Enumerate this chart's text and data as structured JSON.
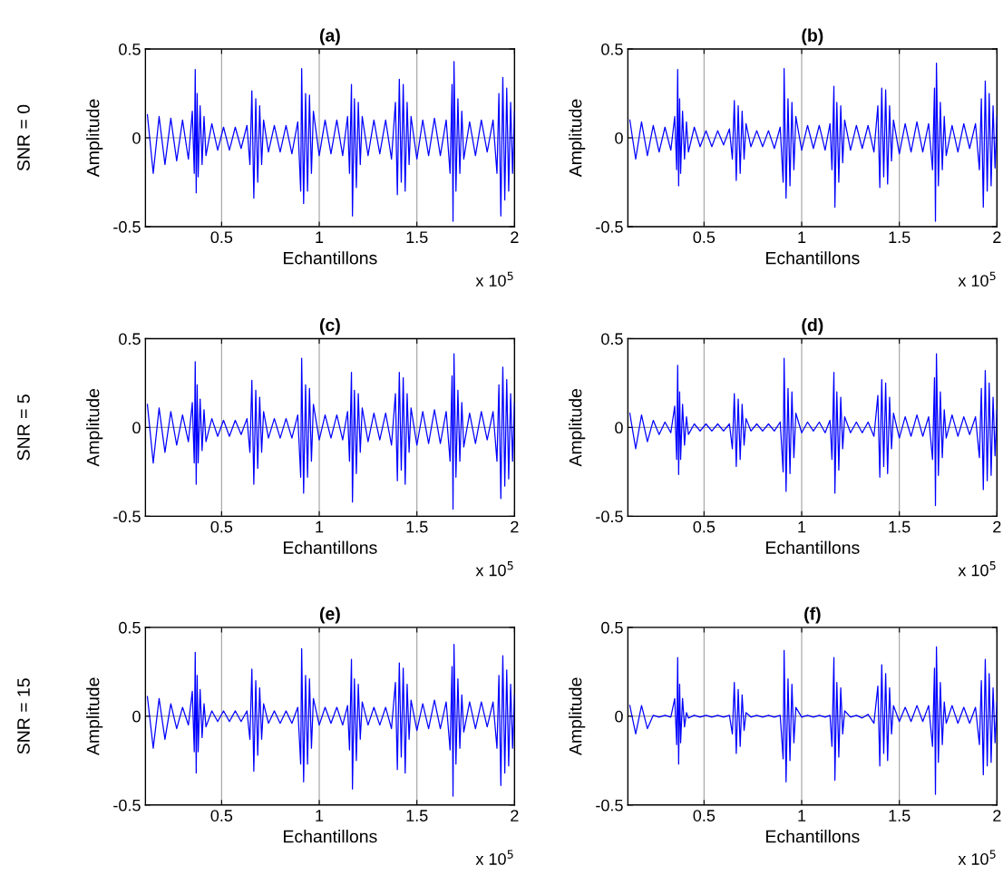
{
  "chart_data": [
    {
      "type": "line",
      "title": "(a)",
      "xlabel": "Echantillons",
      "ylabel": "Amplitude",
      "annotations": [
        "x 10$^{5}$",
        "SNR = 0"
      ],
      "xlim": [
        0.11,
        2
      ],
      "xticks": [
        0.5,
        1,
        1.5,
        2
      ],
      "ylim": [
        -0.5,
        0.5
      ],
      "yticks": [
        -0.5,
        0,
        0.5
      ],
      "grid": true,
      "marker": "none",
      "line_style": "solid",
      "x": [
        0.12,
        0.15,
        0.18,
        0.21,
        0.24,
        0.27,
        0.3,
        0.33,
        0.35,
        0.36,
        0.365,
        0.37,
        0.375,
        0.38,
        0.39,
        0.4,
        0.41,
        0.42,
        0.45,
        0.48,
        0.51,
        0.54,
        0.57,
        0.6,
        0.63,
        0.645,
        0.655,
        0.665,
        0.675,
        0.685,
        0.695,
        0.705,
        0.715,
        0.74,
        0.77,
        0.8,
        0.83,
        0.86,
        0.89,
        0.905,
        0.91,
        0.92,
        0.93,
        0.94,
        0.95,
        0.96,
        0.97,
        1.0,
        1.03,
        1.06,
        1.09,
        1.12,
        1.145,
        1.155,
        1.165,
        1.17,
        1.18,
        1.19,
        1.2,
        1.21,
        1.22,
        1.25,
        1.28,
        1.31,
        1.34,
        1.37,
        1.39,
        1.4,
        1.41,
        1.42,
        1.43,
        1.44,
        1.45,
        1.46,
        1.47,
        1.5,
        1.53,
        1.56,
        1.59,
        1.62,
        1.65,
        1.67,
        1.68,
        1.685,
        1.69,
        1.7,
        1.71,
        1.72,
        1.73,
        1.74,
        1.77,
        1.8,
        1.83,
        1.86,
        1.89,
        1.91,
        1.92,
        1.93,
        1.94,
        1.95,
        1.96,
        1.97,
        1.98,
        1.99,
        2.0
      ],
      "series": [
        {
          "color": "#0000ff",
          "values": [
            0.13,
            -0.2,
            0.12,
            -0.15,
            0.11,
            -0.13,
            0.1,
            -0.12,
            0.15,
            -0.2,
            0.385,
            -0.31,
            0.25,
            -0.22,
            0.18,
            -0.15,
            0.12,
            -0.1,
            0.08,
            -0.07,
            0.06,
            -0.07,
            0.06,
            -0.06,
            0.07,
            -0.15,
            0.265,
            -0.34,
            0.22,
            -0.25,
            0.18,
            -0.15,
            0.1,
            -0.08,
            0.07,
            -0.08,
            0.07,
            -0.09,
            0.09,
            -0.3,
            0.39,
            -0.37,
            0.25,
            -0.3,
            0.24,
            -0.2,
            0.15,
            -0.1,
            0.1,
            -0.09,
            0.1,
            -0.1,
            0.12,
            -0.2,
            0.3,
            -0.44,
            0.22,
            -0.28,
            0.2,
            -0.15,
            0.12,
            -0.1,
            0.1,
            -0.09,
            0.1,
            -0.12,
            0.2,
            -0.32,
            0.33,
            -0.25,
            0.3,
            -0.3,
            0.2,
            -0.15,
            0.12,
            -0.12,
            0.1,
            -0.1,
            0.11,
            -0.1,
            0.1,
            -0.2,
            0.3,
            -0.47,
            0.43,
            -0.3,
            0.22,
            -0.2,
            0.15,
            -0.12,
            0.09,
            -0.1,
            0.1,
            -0.08,
            0.1,
            -0.2,
            0.25,
            -0.44,
            0.34,
            -0.35,
            0.28,
            -0.3,
            0.2,
            -0.2,
            0.15
          ]
        }
      ]
    },
    {
      "type": "line",
      "title": "(b)",
      "xlabel": "Echantillons",
      "ylabel": "Amplitude",
      "annotations": [
        "x 10$^{5}$"
      ],
      "xlim": [
        0.11,
        2
      ],
      "xticks": [
        0.5,
        1,
        1.5,
        2
      ],
      "ylim": [
        -0.5,
        0.5
      ],
      "yticks": [
        -0.5,
        0,
        0.5
      ],
      "grid": true,
      "marker": "none",
      "line_style": "solid",
      "x": [
        0.12,
        0.15,
        0.18,
        0.21,
        0.24,
        0.27,
        0.3,
        0.33,
        0.35,
        0.36,
        0.365,
        0.37,
        0.375,
        0.38,
        0.39,
        0.4,
        0.41,
        0.42,
        0.45,
        0.48,
        0.51,
        0.54,
        0.57,
        0.6,
        0.63,
        0.645,
        0.655,
        0.665,
        0.675,
        0.685,
        0.695,
        0.705,
        0.715,
        0.74,
        0.77,
        0.8,
        0.83,
        0.86,
        0.89,
        0.905,
        0.91,
        0.92,
        0.93,
        0.94,
        0.95,
        0.96,
        0.97,
        1.0,
        1.03,
        1.06,
        1.09,
        1.12,
        1.145,
        1.155,
        1.165,
        1.17,
        1.18,
        1.19,
        1.2,
        1.21,
        1.22,
        1.25,
        1.28,
        1.31,
        1.34,
        1.37,
        1.39,
        1.4,
        1.41,
        1.42,
        1.43,
        1.44,
        1.45,
        1.46,
        1.47,
        1.5,
        1.53,
        1.56,
        1.59,
        1.62,
        1.65,
        1.67,
        1.68,
        1.685,
        1.69,
        1.7,
        1.71,
        1.72,
        1.73,
        1.74,
        1.77,
        1.8,
        1.83,
        1.86,
        1.89,
        1.91,
        1.92,
        1.93,
        1.94,
        1.95,
        1.96,
        1.97,
        1.98,
        1.99,
        2.0
      ],
      "series": [
        {
          "color": "#0000ff",
          "values": [
            0.1,
            -0.12,
            0.09,
            -0.1,
            0.07,
            -0.08,
            0.06,
            -0.07,
            0.12,
            -0.18,
            0.385,
            -0.27,
            0.22,
            -0.2,
            0.15,
            -0.12,
            0.09,
            -0.08,
            0.06,
            -0.05,
            0.04,
            -0.05,
            0.04,
            -0.04,
            0.05,
            -0.12,
            0.21,
            -0.24,
            0.18,
            -0.2,
            0.15,
            -0.12,
            0.08,
            -0.05,
            0.04,
            -0.05,
            0.04,
            -0.06,
            0.06,
            -0.25,
            0.39,
            -0.34,
            0.22,
            -0.27,
            0.2,
            -0.18,
            0.12,
            -0.07,
            0.07,
            -0.06,
            0.07,
            -0.07,
            0.08,
            -0.18,
            0.29,
            -0.39,
            0.2,
            -0.25,
            0.18,
            -0.14,
            0.1,
            -0.07,
            0.07,
            -0.06,
            0.07,
            -0.08,
            0.18,
            -0.28,
            0.28,
            -0.22,
            0.27,
            -0.26,
            0.18,
            -0.13,
            0.1,
            -0.09,
            0.08,
            -0.08,
            0.09,
            -0.08,
            0.08,
            -0.18,
            0.28,
            -0.47,
            0.42,
            -0.27,
            0.2,
            -0.18,
            0.12,
            -0.1,
            0.07,
            -0.08,
            0.08,
            -0.06,
            0.08,
            -0.18,
            0.22,
            -0.39,
            0.32,
            -0.3,
            0.25,
            -0.27,
            0.18,
            -0.17,
            0.12
          ]
        }
      ]
    },
    {
      "type": "line",
      "title": "(c)",
      "xlabel": "Echantillons",
      "ylabel": "Amplitude",
      "annotations": [
        "x 10$^{5}$",
        "SNR = 5"
      ],
      "xlim": [
        0.11,
        2
      ],
      "xticks": [
        0.5,
        1,
        1.5,
        2
      ],
      "ylim": [
        -0.5,
        0.5
      ],
      "yticks": [
        -0.5,
        0,
        0.5
      ],
      "grid": true,
      "marker": "none",
      "line_style": "solid",
      "x": [
        0.12,
        0.15,
        0.18,
        0.21,
        0.24,
        0.27,
        0.3,
        0.33,
        0.35,
        0.36,
        0.365,
        0.37,
        0.375,
        0.38,
        0.39,
        0.4,
        0.41,
        0.42,
        0.45,
        0.48,
        0.51,
        0.54,
        0.57,
        0.6,
        0.63,
        0.645,
        0.655,
        0.665,
        0.675,
        0.685,
        0.695,
        0.705,
        0.715,
        0.74,
        0.77,
        0.8,
        0.83,
        0.86,
        0.89,
        0.905,
        0.91,
        0.92,
        0.93,
        0.94,
        0.95,
        0.96,
        0.97,
        1.0,
        1.03,
        1.06,
        1.09,
        1.12,
        1.145,
        1.155,
        1.165,
        1.17,
        1.18,
        1.19,
        1.2,
        1.21,
        1.22,
        1.25,
        1.28,
        1.31,
        1.34,
        1.37,
        1.39,
        1.4,
        1.41,
        1.42,
        1.43,
        1.44,
        1.45,
        1.46,
        1.47,
        1.5,
        1.53,
        1.56,
        1.59,
        1.62,
        1.65,
        1.67,
        1.68,
        1.685,
        1.69,
        1.7,
        1.71,
        1.72,
        1.73,
        1.74,
        1.77,
        1.8,
        1.83,
        1.86,
        1.89,
        1.91,
        1.92,
        1.93,
        1.94,
        1.95,
        1.96,
        1.97,
        1.98,
        1.99,
        2.0
      ],
      "series": [
        {
          "color": "#0000ff",
          "values": [
            0.13,
            -0.2,
            0.11,
            -0.14,
            0.09,
            -0.1,
            0.07,
            -0.08,
            0.14,
            -0.2,
            0.37,
            -0.32,
            0.24,
            -0.2,
            0.16,
            -0.13,
            0.1,
            -0.08,
            0.05,
            -0.05,
            0.04,
            -0.05,
            0.04,
            -0.04,
            0.05,
            -0.14,
            0.265,
            -0.32,
            0.21,
            -0.23,
            0.17,
            -0.14,
            0.09,
            -0.06,
            0.05,
            -0.06,
            0.05,
            -0.06,
            0.07,
            -0.28,
            0.39,
            -0.37,
            0.24,
            -0.28,
            0.22,
            -0.19,
            0.13,
            -0.07,
            0.07,
            -0.06,
            0.07,
            -0.07,
            0.09,
            -0.19,
            0.31,
            -0.42,
            0.21,
            -0.26,
            0.19,
            -0.14,
            0.11,
            -0.08,
            0.08,
            -0.07,
            0.08,
            -0.1,
            0.19,
            -0.3,
            0.31,
            -0.24,
            0.28,
            -0.32,
            0.19,
            -0.14,
            0.11,
            -0.1,
            0.09,
            -0.09,
            0.1,
            -0.09,
            0.09,
            -0.19,
            0.29,
            -0.46,
            0.415,
            -0.28,
            0.21,
            -0.19,
            0.14,
            -0.11,
            0.08,
            -0.09,
            0.09,
            -0.07,
            0.09,
            -0.19,
            0.24,
            -0.4,
            0.34,
            -0.33,
            0.27,
            -0.29,
            0.19,
            -0.19,
            0.14
          ]
        }
      ]
    },
    {
      "type": "line",
      "title": "(d)",
      "xlabel": "Echantillons",
      "ylabel": "Amplitude",
      "annotations": [
        "x 10$^{5}$"
      ],
      "xlim": [
        0.11,
        2
      ],
      "xticks": [
        0.5,
        1,
        1.5,
        2
      ],
      "ylim": [
        -0.5,
        0.5
      ],
      "yticks": [
        -0.5,
        0,
        0.5
      ],
      "grid": true,
      "marker": "none",
      "line_style": "solid",
      "x": [
        0.12,
        0.15,
        0.18,
        0.21,
        0.24,
        0.27,
        0.3,
        0.33,
        0.35,
        0.36,
        0.365,
        0.37,
        0.375,
        0.38,
        0.39,
        0.4,
        0.41,
        0.42,
        0.45,
        0.48,
        0.51,
        0.54,
        0.57,
        0.6,
        0.63,
        0.645,
        0.655,
        0.665,
        0.675,
        0.685,
        0.695,
        0.705,
        0.715,
        0.74,
        0.77,
        0.8,
        0.83,
        0.86,
        0.89,
        0.905,
        0.91,
        0.92,
        0.93,
        0.94,
        0.95,
        0.96,
        0.97,
        1.0,
        1.03,
        1.06,
        1.09,
        1.12,
        1.145,
        1.155,
        1.165,
        1.17,
        1.18,
        1.19,
        1.2,
        1.21,
        1.22,
        1.25,
        1.28,
        1.31,
        1.34,
        1.37,
        1.39,
        1.4,
        1.41,
        1.42,
        1.43,
        1.44,
        1.45,
        1.46,
        1.47,
        1.5,
        1.53,
        1.56,
        1.59,
        1.62,
        1.65,
        1.67,
        1.68,
        1.685,
        1.69,
        1.7,
        1.71,
        1.72,
        1.73,
        1.74,
        1.77,
        1.8,
        1.83,
        1.86,
        1.89,
        1.91,
        1.92,
        1.93,
        1.94,
        1.95,
        1.96,
        1.97,
        1.98,
        1.99,
        2.0
      ],
      "series": [
        {
          "color": "#0000ff",
          "values": [
            0.08,
            -0.12,
            0.07,
            -0.08,
            0.04,
            -0.04,
            0.03,
            -0.03,
            0.12,
            -0.18,
            0.35,
            -0.265,
            0.2,
            -0.18,
            0.13,
            -0.1,
            0.06,
            -0.04,
            0.02,
            -0.02,
            0.02,
            -0.02,
            0.02,
            -0.02,
            0.02,
            -0.12,
            0.19,
            -0.22,
            0.16,
            -0.18,
            0.13,
            -0.1,
            0.05,
            -0.02,
            0.02,
            -0.02,
            0.02,
            -0.02,
            0.03,
            -0.25,
            0.39,
            -0.36,
            0.22,
            -0.26,
            0.2,
            -0.17,
            0.08,
            -0.03,
            0.03,
            -0.02,
            0.03,
            -0.03,
            0.04,
            -0.18,
            0.31,
            -0.37,
            0.2,
            -0.24,
            0.17,
            -0.12,
            0.06,
            -0.03,
            0.03,
            -0.03,
            0.03,
            -0.05,
            0.18,
            -0.28,
            0.27,
            -0.22,
            0.25,
            -0.26,
            0.17,
            -0.12,
            0.08,
            -0.06,
            0.06,
            -0.05,
            0.07,
            -0.05,
            0.06,
            -0.18,
            0.28,
            -0.44,
            0.415,
            -0.27,
            0.2,
            -0.17,
            0.1,
            -0.06,
            0.07,
            -0.05,
            0.06,
            -0.04,
            0.06,
            -0.17,
            0.22,
            -0.35,
            0.32,
            -0.3,
            0.25,
            -0.27,
            0.17,
            -0.16,
            0.1
          ]
        }
      ]
    },
    {
      "type": "line",
      "title": "(e)",
      "xlabel": "Echantillons",
      "ylabel": "Amplitude",
      "annotations": [
        "x 10$^{5}$",
        "SNR = 15"
      ],
      "xlim": [
        0.11,
        2
      ],
      "xticks": [
        0.5,
        1,
        1.5,
        2
      ],
      "ylim": [
        -0.5,
        0.5
      ],
      "yticks": [
        -0.5,
        0,
        0.5
      ],
      "grid": true,
      "marker": "none",
      "line_style": "solid",
      "x": [
        0.12,
        0.15,
        0.18,
        0.21,
        0.24,
        0.27,
        0.3,
        0.33,
        0.35,
        0.36,
        0.365,
        0.37,
        0.375,
        0.38,
        0.39,
        0.4,
        0.41,
        0.42,
        0.45,
        0.48,
        0.51,
        0.54,
        0.57,
        0.6,
        0.63,
        0.645,
        0.655,
        0.665,
        0.675,
        0.685,
        0.695,
        0.705,
        0.715,
        0.74,
        0.77,
        0.8,
        0.83,
        0.86,
        0.89,
        0.905,
        0.91,
        0.92,
        0.93,
        0.94,
        0.95,
        0.96,
        0.97,
        1.0,
        1.03,
        1.06,
        1.09,
        1.12,
        1.145,
        1.155,
        1.165,
        1.17,
        1.18,
        1.19,
        1.2,
        1.21,
        1.22,
        1.25,
        1.28,
        1.31,
        1.34,
        1.37,
        1.39,
        1.4,
        1.41,
        1.42,
        1.43,
        1.44,
        1.45,
        1.46,
        1.47,
        1.5,
        1.53,
        1.56,
        1.59,
        1.62,
        1.65,
        1.67,
        1.68,
        1.685,
        1.69,
        1.7,
        1.71,
        1.72,
        1.73,
        1.74,
        1.77,
        1.8,
        1.83,
        1.86,
        1.89,
        1.91,
        1.92,
        1.93,
        1.94,
        1.95,
        1.96,
        1.97,
        1.98,
        1.99,
        2.0
      ],
      "series": [
        {
          "color": "#0000ff",
          "values": [
            0.11,
            -0.18,
            0.1,
            -0.13,
            0.07,
            -0.07,
            0.05,
            -0.05,
            0.14,
            -0.2,
            0.36,
            -0.32,
            0.23,
            -0.2,
            0.15,
            -0.12,
            0.07,
            -0.06,
            0.03,
            -0.03,
            0.03,
            -0.03,
            0.03,
            -0.03,
            0.03,
            -0.13,
            0.265,
            -0.31,
            0.2,
            -0.22,
            0.16,
            -0.13,
            0.07,
            -0.04,
            0.03,
            -0.04,
            0.03,
            -0.04,
            0.05,
            -0.27,
            0.38,
            -0.37,
            0.23,
            -0.27,
            0.21,
            -0.18,
            0.1,
            -0.05,
            0.05,
            -0.04,
            0.05,
            -0.05,
            0.06,
            -0.19,
            0.32,
            -0.41,
            0.21,
            -0.25,
            0.18,
            -0.13,
            0.08,
            -0.05,
            0.05,
            -0.05,
            0.05,
            -0.07,
            0.19,
            -0.3,
            0.3,
            -0.23,
            0.27,
            -0.32,
            0.18,
            -0.13,
            0.09,
            -0.08,
            0.07,
            -0.07,
            0.09,
            -0.07,
            0.08,
            -0.19,
            0.28,
            -0.45,
            0.405,
            -0.27,
            0.21,
            -0.18,
            0.12,
            -0.09,
            0.08,
            -0.07,
            0.08,
            -0.06,
            0.08,
            -0.18,
            0.23,
            -0.39,
            0.34,
            -0.32,
            0.26,
            -0.28,
            0.18,
            -0.18,
            0.12
          ]
        }
      ]
    },
    {
      "type": "line",
      "title": "(f)",
      "xlabel": "Echantillons",
      "ylabel": "Amplitude",
      "annotations": [
        "x 10$^{5}$"
      ],
      "xlim": [
        0.11,
        2
      ],
      "xticks": [
        0.5,
        1,
        1.5,
        2
      ],
      "ylim": [
        -0.5,
        0.5
      ],
      "yticks": [
        -0.5,
        0,
        0.5
      ],
      "grid": true,
      "marker": "none",
      "line_style": "solid",
      "x": [
        0.12,
        0.15,
        0.18,
        0.21,
        0.24,
        0.27,
        0.3,
        0.33,
        0.35,
        0.36,
        0.365,
        0.37,
        0.375,
        0.38,
        0.39,
        0.4,
        0.41,
        0.42,
        0.45,
        0.48,
        0.51,
        0.54,
        0.57,
        0.6,
        0.63,
        0.645,
        0.655,
        0.665,
        0.675,
        0.685,
        0.695,
        0.705,
        0.715,
        0.74,
        0.77,
        0.8,
        0.83,
        0.86,
        0.89,
        0.905,
        0.91,
        0.92,
        0.93,
        0.94,
        0.95,
        0.96,
        0.97,
        1.0,
        1.03,
        1.06,
        1.09,
        1.12,
        1.145,
        1.155,
        1.165,
        1.17,
        1.18,
        1.19,
        1.2,
        1.21,
        1.22,
        1.25,
        1.28,
        1.31,
        1.34,
        1.37,
        1.39,
        1.4,
        1.41,
        1.42,
        1.43,
        1.44,
        1.45,
        1.46,
        1.47,
        1.5,
        1.53,
        1.56,
        1.59,
        1.62,
        1.65,
        1.67,
        1.68,
        1.685,
        1.69,
        1.7,
        1.71,
        1.72,
        1.73,
        1.74,
        1.77,
        1.8,
        1.83,
        1.86,
        1.89,
        1.91,
        1.92,
        1.93,
        1.94,
        1.95,
        1.96,
        1.97,
        1.98,
        1.99,
        2.0
      ],
      "series": [
        {
          "color": "#0000ff",
          "values": [
            0.06,
            -0.1,
            0.06,
            -0.07,
            0.005,
            -0.005,
            0.005,
            -0.005,
            0.1,
            -0.16,
            0.33,
            -0.27,
            0.18,
            -0.15,
            0.1,
            -0.06,
            0.02,
            -0.01,
            0.005,
            -0.005,
            0.005,
            -0.005,
            0.005,
            -0.005,
            0.005,
            -0.1,
            0.19,
            -0.21,
            0.15,
            -0.17,
            0.12,
            -0.08,
            0.02,
            -0.005,
            0.005,
            -0.005,
            0.005,
            -0.005,
            0.005,
            -0.24,
            0.37,
            -0.37,
            0.21,
            -0.25,
            0.18,
            -0.15,
            0.05,
            -0.005,
            0.005,
            -0.005,
            0.005,
            -0.005,
            0.005,
            -0.17,
            0.33,
            -0.36,
            0.19,
            -0.23,
            0.16,
            -0.1,
            0.03,
            -0.005,
            0.005,
            -0.01,
            0.01,
            -0.04,
            0.17,
            -0.28,
            0.29,
            -0.21,
            0.24,
            -0.25,
            0.16,
            -0.1,
            0.06,
            -0.03,
            0.05,
            -0.03,
            0.06,
            -0.03,
            0.06,
            -0.17,
            0.27,
            -0.44,
            0.39,
            -0.26,
            0.19,
            -0.16,
            0.08,
            -0.04,
            0.06,
            -0.04,
            0.05,
            -0.04,
            0.05,
            -0.16,
            0.2,
            -0.33,
            0.32,
            -0.28,
            0.24,
            -0.26,
            0.16,
            -0.15,
            0.08
          ]
        }
      ]
    }
  ]
}
